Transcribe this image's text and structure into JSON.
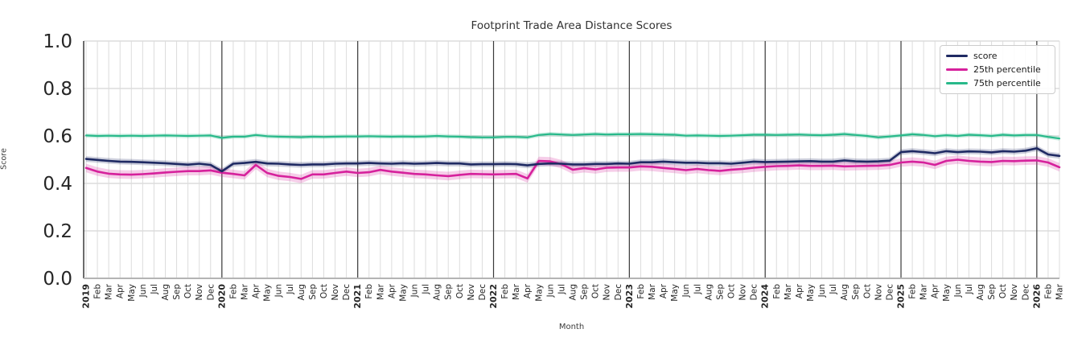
{
  "title": "Footprint Trade Area Distance Scores",
  "xlabel": "Month",
  "ylabel": "Score",
  "legend": {
    "position": "upper right"
  },
  "axes": {
    "ylim": [
      0.0,
      1.0
    ],
    "yticks": [
      "0.0",
      "0.2",
      "0.4",
      "0.6",
      "0.8",
      "1.0"
    ],
    "grid": true,
    "year_ticks_bold": true
  },
  "colors": {
    "score": "#1f2a63",
    "p25": "#d6219c",
    "p75": "#28b98a",
    "grid_minor": "#dcdcdc",
    "grid_major_h": "#cbcbcb",
    "year_line": "#3a3a3a",
    "axis_bottom": "#b4b4b4",
    "tick_text": "#262626"
  },
  "chart_data": {
    "type": "line",
    "title": "Footprint Trade Area Distance Scores",
    "xlabel": "Month",
    "ylabel": "Score",
    "ylim": [
      0.0,
      1.0
    ],
    "legend_position": "upper right",
    "x_labels": [
      "2019",
      "Feb",
      "Mar",
      "Apr",
      "May",
      "Jun",
      "Jul",
      "Aug",
      "Sep",
      "Oct",
      "Nov",
      "Dec",
      "2020",
      "Feb",
      "Mar",
      "Apr",
      "May",
      "Jun",
      "Jul",
      "Aug",
      "Sep",
      "Oct",
      "Nov",
      "Dec",
      "2021",
      "Feb",
      "Mar",
      "Apr",
      "May",
      "Jun",
      "Jul",
      "Aug",
      "Sep",
      "Oct",
      "Nov",
      "Dec",
      "2022",
      "Feb",
      "Mar",
      "Apr",
      "May",
      "Jun",
      "Jul",
      "Aug",
      "Sep",
      "Oct",
      "Nov",
      "Dec",
      "2023",
      "Feb",
      "Mar",
      "Apr",
      "May",
      "Jun",
      "Jul",
      "Aug",
      "Sep",
      "Oct",
      "Nov",
      "Dec",
      "2024",
      "Feb",
      "Mar",
      "Apr",
      "May",
      "Jun",
      "Jul",
      "Aug",
      "Sep",
      "Oct",
      "Nov",
      "Dec",
      "2025",
      "Feb",
      "Mar",
      "Apr",
      "May",
      "Jun",
      "Jul",
      "Aug",
      "Sep",
      "Oct",
      "Nov",
      "Dec",
      "2026",
      "Feb",
      "Mar"
    ],
    "series": [
      {
        "name": "score",
        "color": "#1f2a63",
        "band_halfwidth": 0.012,
        "values": [
          0.503,
          0.499,
          0.495,
          0.492,
          0.491,
          0.489,
          0.487,
          0.485,
          0.482,
          0.479,
          0.483,
          0.478,
          0.451,
          0.483,
          0.486,
          0.491,
          0.484,
          0.483,
          0.48,
          0.478,
          0.48,
          0.48,
          0.483,
          0.484,
          0.484,
          0.486,
          0.484,
          0.483,
          0.485,
          0.483,
          0.484,
          0.486,
          0.484,
          0.484,
          0.48,
          0.481,
          0.481,
          0.482,
          0.481,
          0.476,
          0.482,
          0.484,
          0.483,
          0.48,
          0.48,
          0.482,
          0.482,
          0.484,
          0.483,
          0.489,
          0.489,
          0.492,
          0.489,
          0.487,
          0.487,
          0.485,
          0.485,
          0.483,
          0.487,
          0.492,
          0.49,
          0.491,
          0.492,
          0.493,
          0.494,
          0.492,
          0.492,
          0.497,
          0.493,
          0.492,
          0.493,
          0.496,
          0.532,
          0.536,
          0.532,
          0.527,
          0.536,
          0.532,
          0.535,
          0.534,
          0.531,
          0.536,
          0.534,
          0.538,
          0.548,
          0.522,
          0.516
        ]
      },
      {
        "name": "25th percentile",
        "color": "#d6219c",
        "band_halfwidth": 0.018,
        "values": [
          0.465,
          0.45,
          0.441,
          0.438,
          0.437,
          0.439,
          0.442,
          0.446,
          0.449,
          0.452,
          0.452,
          0.455,
          0.445,
          0.44,
          0.434,
          0.478,
          0.444,
          0.432,
          0.427,
          0.419,
          0.438,
          0.438,
          0.444,
          0.45,
          0.444,
          0.447,
          0.457,
          0.45,
          0.445,
          0.44,
          0.438,
          0.434,
          0.431,
          0.436,
          0.44,
          0.439,
          0.438,
          0.439,
          0.44,
          0.421,
          0.495,
          0.493,
          0.481,
          0.458,
          0.464,
          0.459,
          0.466,
          0.467,
          0.467,
          0.472,
          0.47,
          0.465,
          0.461,
          0.456,
          0.461,
          0.456,
          0.453,
          0.458,
          0.461,
          0.466,
          0.47,
          0.473,
          0.474,
          0.476,
          0.474,
          0.474,
          0.475,
          0.472,
          0.473,
          0.474,
          0.475,
          0.478,
          0.488,
          0.492,
          0.488,
          0.478,
          0.495,
          0.5,
          0.495,
          0.492,
          0.49,
          0.495,
          0.494,
          0.496,
          0.497,
          0.488,
          0.468
        ]
      },
      {
        "name": "75th percentile",
        "color": "#28b98a",
        "band_halfwidth": 0.009,
        "values": [
          0.602,
          0.6,
          0.601,
          0.6,
          0.601,
          0.6,
          0.601,
          0.602,
          0.601,
          0.6,
          0.601,
          0.602,
          0.592,
          0.597,
          0.597,
          0.604,
          0.599,
          0.597,
          0.596,
          0.595,
          0.597,
          0.596,
          0.597,
          0.598,
          0.598,
          0.599,
          0.598,
          0.597,
          0.598,
          0.597,
          0.598,
          0.6,
          0.598,
          0.597,
          0.595,
          0.594,
          0.594,
          0.596,
          0.596,
          0.594,
          0.604,
          0.608,
          0.606,
          0.604,
          0.606,
          0.608,
          0.606,
          0.607,
          0.607,
          0.608,
          0.607,
          0.606,
          0.605,
          0.601,
          0.602,
          0.601,
          0.6,
          0.601,
          0.603,
          0.605,
          0.605,
          0.604,
          0.605,
          0.606,
          0.604,
          0.603,
          0.605,
          0.608,
          0.604,
          0.6,
          0.594,
          0.598,
          0.602,
          0.607,
          0.604,
          0.599,
          0.603,
          0.6,
          0.605,
          0.603,
          0.6,
          0.605,
          0.602,
          0.604,
          0.604,
          0.596,
          0.589
        ]
      }
    ]
  }
}
